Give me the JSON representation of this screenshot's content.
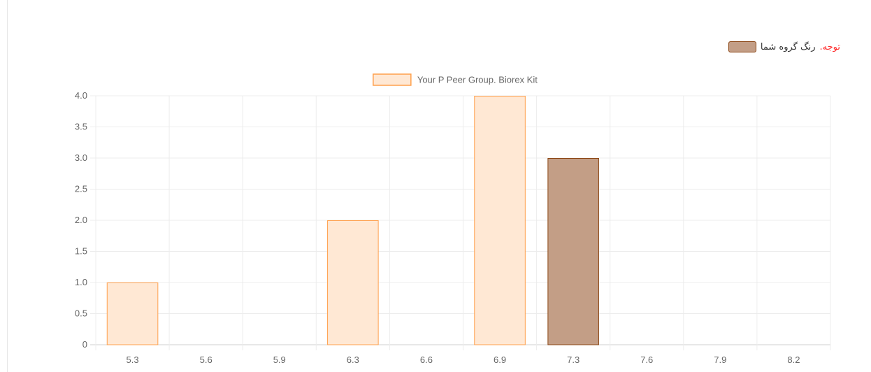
{
  "note": {
    "label": "توجه.",
    "text": "رنگ گروه شما",
    "label_color": "#ff2a2a",
    "swatch_color": "#c39e86",
    "swatch_border": "#8b4513"
  },
  "chart_data": {
    "type": "bar",
    "title": "",
    "xlabel": "",
    "ylabel": "",
    "categories": [
      "5.3",
      "5.6",
      "5.9",
      "6.3",
      "6.6",
      "6.9",
      "7.3",
      "7.6",
      "7.9",
      "8.2"
    ],
    "series": [
      {
        "name": "Your P Peer Group. Biorex Kit",
        "values": [
          1,
          0,
          0,
          2,
          0,
          4,
          3,
          0,
          0,
          0
        ],
        "color": "#ffe8d4",
        "border_color": "#ffa04d"
      }
    ],
    "highlight": {
      "category": "7.3",
      "color": "#c39e86",
      "border_color": "#8b4513"
    },
    "ylim": [
      0,
      4
    ],
    "yticks": [
      "0",
      "0.5",
      "1.0",
      "1.5",
      "2.0",
      "2.5",
      "3.0",
      "3.5",
      "4.0"
    ],
    "grid": true,
    "legend_position": "top"
  }
}
